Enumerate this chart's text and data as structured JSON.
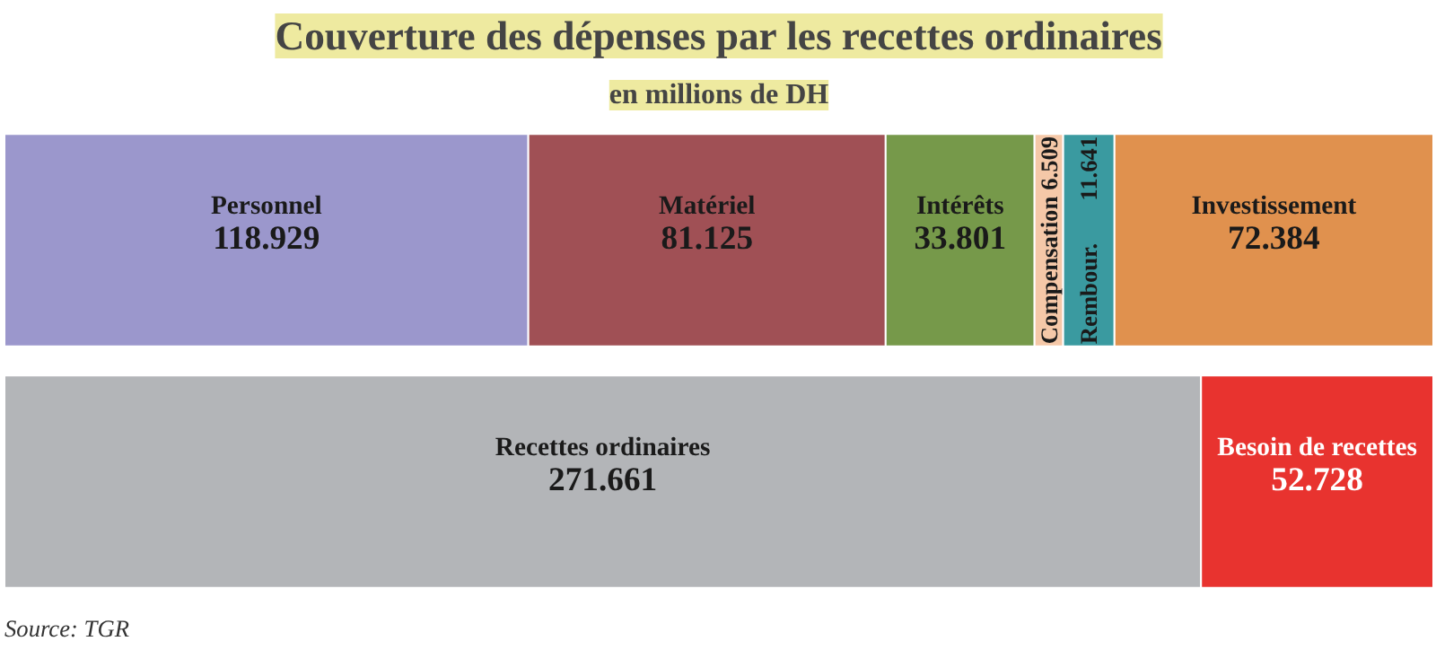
{
  "chart_data": {
    "type": "bar",
    "orientation": "horizontal",
    "stacked": true,
    "data_labels": true,
    "title": "Couverture des dépenses par les recettes ordinaires",
    "subtitle": "en millions de DH",
    "annotations": [
      "Source: TGR"
    ],
    "categories": [
      null,
      null
    ],
    "series": [
      {
        "name": "Personnel",
        "color": "#9b97cc",
        "values": [
          118.929,
          null
        ]
      },
      {
        "name": "Matériel",
        "color": "#a05055",
        "values": [
          81.125,
          null
        ]
      },
      {
        "name": "Intérêts",
        "color": "#76994a",
        "values": [
          33.801,
          null
        ]
      },
      {
        "name": "Compensation",
        "color": "#f5c8a8",
        "values": [
          6.509,
          null
        ]
      },
      {
        "name": "Rembour.",
        "color": "#3a9aa0",
        "values": [
          11.641,
          null
        ]
      },
      {
        "name": "Investissement",
        "color": "#e0914e",
        "values": [
          72.384,
          null
        ]
      },
      {
        "name": "Recettes ordinaires",
        "color": "#b3b5b8",
        "values": [
          null,
          271.661
        ]
      },
      {
        "name": "Besoin de recettes",
        "color": "#e8332f",
        "values": [
          null,
          52.728
        ]
      }
    ]
  }
}
